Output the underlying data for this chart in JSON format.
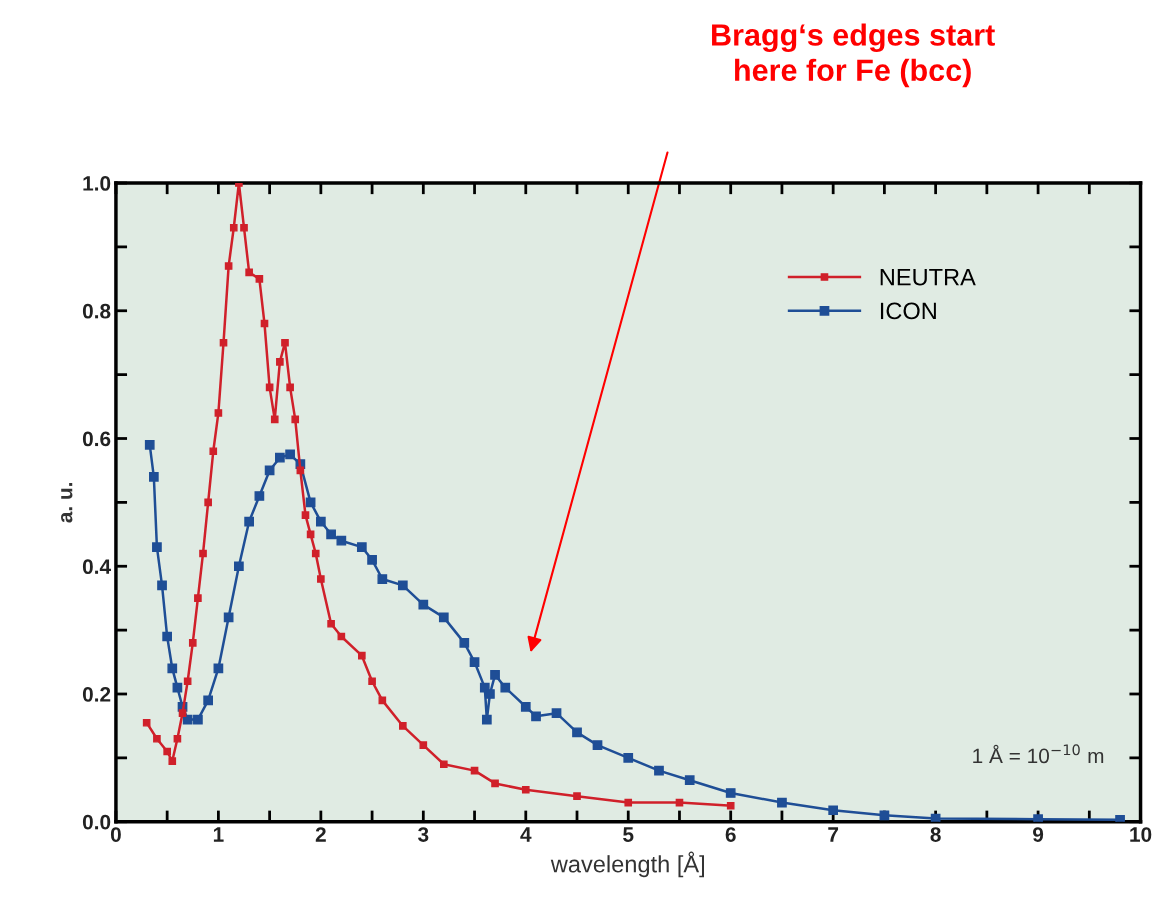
{
  "chart_data": {
    "type": "line",
    "xlabel": "wavelength [Å]",
    "ylabel": "a. u.",
    "xlim": [
      0,
      10
    ],
    "ylim": [
      0,
      1.0
    ],
    "xticks": [
      0,
      {
        "value": 0.5,
        "label": null
      },
      1,
      {
        "value": 1.5,
        "label": null
      },
      2,
      {
        "value": 2.5,
        "label": null
      },
      3,
      {
        "value": 3.5,
        "label": null
      },
      4,
      {
        "value": 4.5,
        "label": null
      },
      5,
      {
        "value": 5.5,
        "label": null
      },
      6,
      {
        "value": 6.5,
        "label": null
      },
      7,
      {
        "value": 7.5,
        "label": null
      },
      8,
      {
        "value": 8.5,
        "label": null
      },
      9,
      {
        "value": 9.5,
        "label": null
      },
      10
    ],
    "yticks": [
      {
        "value": 0,
        "label": "0.0"
      },
      {
        "value": 0.1,
        "label": null
      },
      {
        "value": 0.2,
        "label": "0.2"
      },
      {
        "value": 0.3,
        "label": null
      },
      {
        "value": 0.4,
        "label": "0.4"
      },
      {
        "value": 0.5,
        "label": null
      },
      {
        "value": 0.6,
        "label": "0.6"
      },
      {
        "value": 0.7,
        "label": null
      },
      {
        "value": 0.8,
        "label": "0.8"
      },
      {
        "value": 0.9,
        "label": null
      },
      {
        "value": 1.0,
        "label": "1.0"
      }
    ],
    "grid": false,
    "legend": "top right",
    "marker": "square",
    "line_style": "solid",
    "series": [
      {
        "name": "NEUTRA",
        "color": "#d0202a",
        "x": [
          0.3,
          0.4,
          0.5,
          0.55,
          0.6,
          0.65,
          0.7,
          0.75,
          0.8,
          0.85,
          0.9,
          0.95,
          1.0,
          1.05,
          1.1,
          1.15,
          1.2,
          1.25,
          1.3,
          1.4,
          1.45,
          1.5,
          1.55,
          1.6,
          1.65,
          1.7,
          1.75,
          1.8,
          1.85,
          1.9,
          1.95,
          2.0,
          2.1,
          2.2,
          2.4,
          2.5,
          2.6,
          2.8,
          3.0,
          3.2,
          3.5,
          3.7,
          4.0,
          4.5,
          5.0,
          5.5,
          6.0
        ],
        "values": [
          0.155,
          0.13,
          0.11,
          0.095,
          0.13,
          0.17,
          0.22,
          0.28,
          0.35,
          0.42,
          0.5,
          0.58,
          0.64,
          0.75,
          0.87,
          0.93,
          1.0,
          0.93,
          0.86,
          0.85,
          0.78,
          0.68,
          0.63,
          0.72,
          0.75,
          0.68,
          0.63,
          0.55,
          0.48,
          0.45,
          0.42,
          0.38,
          0.31,
          0.29,
          0.26,
          0.22,
          0.19,
          0.15,
          0.12,
          0.09,
          0.08,
          0.06,
          0.05,
          0.04,
          0.03,
          0.03,
          0.025
        ]
      },
      {
        "name": "ICON",
        "color": "#1f4e96",
        "x": [
          0.33,
          0.37,
          0.4,
          0.45,
          0.5,
          0.55,
          0.6,
          0.65,
          0.7,
          0.8,
          0.9,
          1.0,
          1.1,
          1.2,
          1.3,
          1.4,
          1.5,
          1.6,
          1.7,
          1.8,
          1.9,
          2.0,
          2.1,
          2.2,
          2.4,
          2.5,
          2.6,
          2.8,
          3.0,
          3.2,
          3.4,
          3.5,
          3.6,
          3.62,
          3.65,
          3.7,
          3.8,
          4.0,
          4.1,
          4.3,
          4.5,
          4.7,
          5.0,
          5.3,
          5.6,
          6.0,
          6.5,
          7.0,
          7.5,
          8.0,
          9.0,
          9.8
        ],
        "values": [
          0.59,
          0.54,
          0.43,
          0.37,
          0.29,
          0.24,
          0.21,
          0.18,
          0.16,
          0.16,
          0.19,
          0.24,
          0.32,
          0.4,
          0.47,
          0.51,
          0.55,
          0.57,
          0.575,
          0.56,
          0.5,
          0.47,
          0.45,
          0.44,
          0.43,
          0.41,
          0.38,
          0.37,
          0.34,
          0.32,
          0.28,
          0.25,
          0.21,
          0.16,
          0.2,
          0.23,
          0.21,
          0.18,
          0.165,
          0.17,
          0.14,
          0.12,
          0.1,
          0.08,
          0.065,
          0.045,
          0.03,
          0.018,
          0.01,
          0.005,
          0.004,
          0.003
        ]
      }
    ],
    "annotations": [
      "Bragg‘s edges start\nhere for Fe (bcc)",
      "1 Å = 10$^{−10}$ m"
    ]
  }
}
